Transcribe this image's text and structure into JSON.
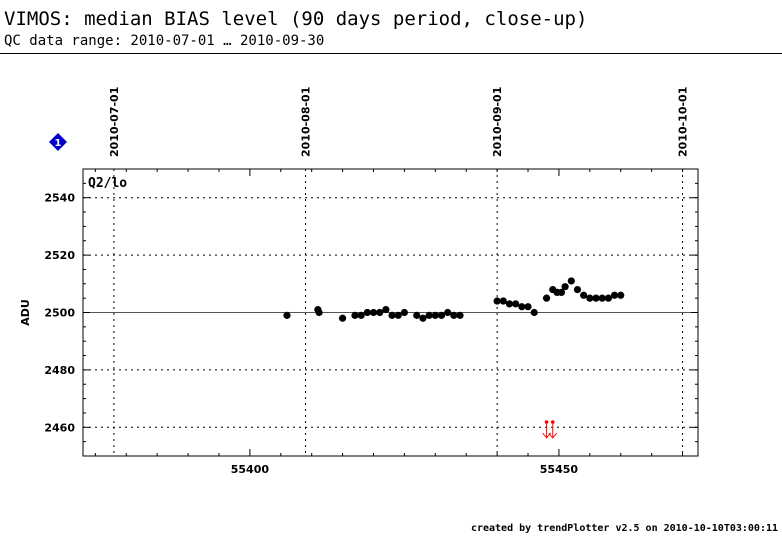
{
  "header": {
    "title": "VIMOS: median BIAS level (90 days period, close-up)",
    "subtitle": "QC data range: 2010-07-01 … 2010-09-30"
  },
  "footer": {
    "credit": "created by trendPlotter v2.5 on 2010-10-10T03:00:11"
  },
  "chart_data": {
    "type": "scatter",
    "title": "",
    "panel_label": "Q2/lo",
    "marker_label": "1",
    "xlabel": "",
    "ylabel": "ADU",
    "xlim": [
      55373,
      55472.5
    ],
    "ylim": [
      2450,
      2550
    ],
    "x_ticks": [
      55400,
      55450
    ],
    "y_ticks": [
      2460,
      2480,
      2500,
      2520,
      2540
    ],
    "top_axis_dates": [
      {
        "label": "2010-07-01",
        "mjd": 55378
      },
      {
        "label": "2010-08-01",
        "mjd": 55409
      },
      {
        "label": "2010-09-01",
        "mjd": 55440
      },
      {
        "label": "2010-10-01",
        "mjd": 55470
      }
    ],
    "reference_line": 2500,
    "grid": "dotted",
    "colors": {
      "points": "#000000",
      "out_of_range": "#ff0000",
      "marker": "#0000cc"
    },
    "series": [
      {
        "x": [
          55406,
          55411,
          55411.2,
          55415,
          55417,
          55418,
          55419,
          55420,
          55421,
          55422,
          55423,
          55424,
          55425,
          55427,
          55428,
          55429,
          55430,
          55431,
          55432,
          55433,
          55434,
          55440,
          55441,
          55442,
          55443,
          55444,
          55445,
          55446,
          55448,
          55449,
          55449.7,
          55450.4,
          55451,
          55452,
          55453,
          55454,
          55455,
          55456,
          55457,
          55458,
          55459,
          55460
        ],
        "y": [
          2499,
          2501,
          2500,
          2498,
          2499,
          2499,
          2500,
          2500,
          2500,
          2501,
          2499,
          2499,
          2500,
          2499,
          2498,
          2499,
          2499,
          2499,
          2500,
          2499,
          2499,
          2504,
          2504,
          2503,
          2503,
          2502,
          2502,
          2500,
          2505,
          2508,
          2507,
          2507,
          2509,
          2511,
          2508,
          2506,
          2505,
          2505,
          2505,
          2505,
          2506,
          2506
        ]
      }
    ],
    "out_of_range_below": [
      55448,
      55449
    ]
  }
}
